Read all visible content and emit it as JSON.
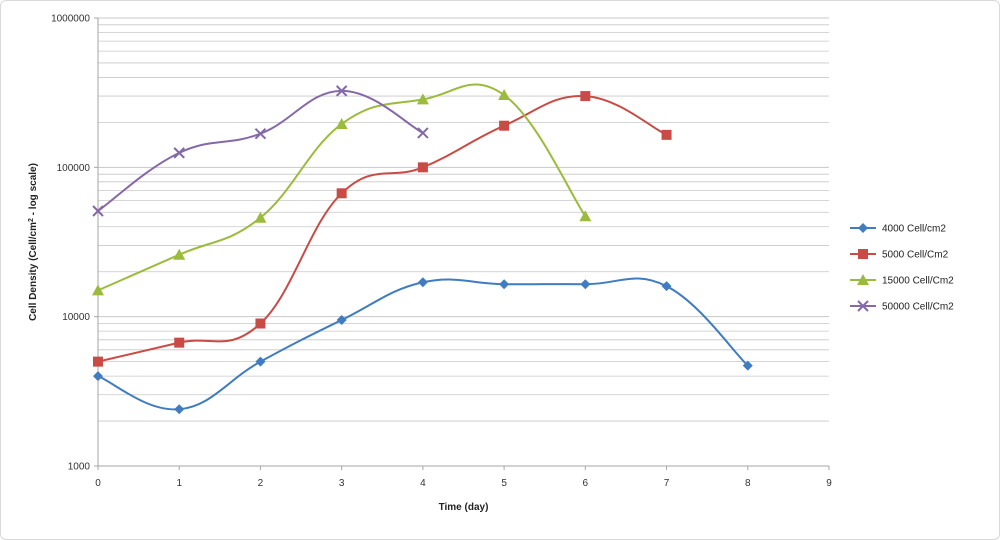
{
  "chart_data": {
    "type": "line",
    "title": "",
    "xlabel": "Time (day)",
    "ylabel": "Cell Density (Cell/cm² - log scale)",
    "ylabel_main": "Cell Density (Cell/cm",
    "ylabel_sup": "2",
    "ylabel_tail": " - log scale)",
    "yscale": "log",
    "xlim": [
      0,
      9
    ],
    "ylim": [
      1000,
      1000000
    ],
    "x_ticks": [
      "0",
      "1",
      "2",
      "3",
      "4",
      "5",
      "6",
      "7",
      "8",
      "9"
    ],
    "y_ticks": [
      "1000",
      "10000",
      "100000",
      "1000000"
    ],
    "grid": "horizontal major and minor",
    "legend_position": "right",
    "series": [
      {
        "name": "4000 Cell/cm2",
        "color": "#3f7cc0",
        "marker": "diamond",
        "x": [
          0,
          1,
          2,
          3,
          4,
          5,
          6,
          7,
          8
        ],
        "y": [
          4000,
          2400,
          5000,
          9500,
          17000,
          16500,
          16500,
          16000,
          4700
        ]
      },
      {
        "name": "5000 Cell/Cm2",
        "color": "#c94b45",
        "marker": "square",
        "x": [
          0,
          1,
          2,
          3,
          4,
          5,
          6,
          7
        ],
        "y": [
          5000,
          6700,
          9000,
          67000,
          100000,
          190000,
          300000,
          165000
        ]
      },
      {
        "name": "15000 Cell/Cm2",
        "color": "#9bbb3c",
        "marker": "triangle",
        "x": [
          0,
          1,
          2,
          3,
          4,
          5,
          6
        ],
        "y": [
          15000,
          26000,
          46000,
          195000,
          285000,
          305000,
          47000
        ]
      },
      {
        "name": "50000 Cell/Cm2",
        "color": "#8568a8",
        "marker": "x",
        "x": [
          0,
          1,
          2,
          3,
          4
        ],
        "y": [
          51000,
          125000,
          168000,
          325000,
          170000
        ]
      }
    ]
  }
}
